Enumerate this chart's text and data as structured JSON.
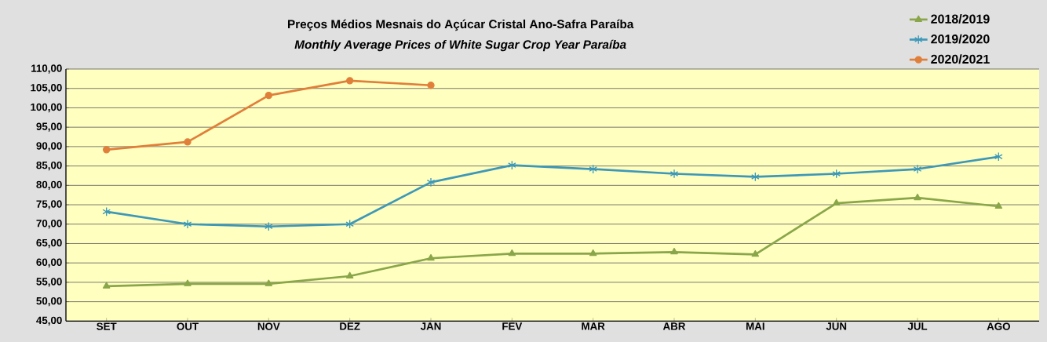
{
  "chart_data": {
    "type": "line",
    "title": "Preços Médios Mesnais do Açúcar Cristal   Ano-Safra   Paraíba",
    "subtitle": "Monthly Average Prices of White Sugar   Crop Year   Paraíba",
    "categories": [
      "SET",
      "OUT",
      "NOV",
      "DEZ",
      "JAN",
      "FEV",
      "MAR",
      "ABR",
      "MAI",
      "JUN",
      "JUL",
      "AGO"
    ],
    "series": [
      {
        "name": "2018/2019",
        "color": "#8aa64a",
        "marker": "triangle",
        "values": [
          54.0,
          54.6,
          54.6,
          56.6,
          61.2,
          62.4,
          62.4,
          62.8,
          62.2,
          75.4,
          76.8,
          74.6
        ]
      },
      {
        "name": "2019/2020",
        "color": "#3d98b8",
        "marker": "cross",
        "values": [
          73.2,
          70.0,
          69.4,
          70.0,
          80.8,
          85.2,
          84.2,
          83.0,
          82.2,
          83.0,
          84.2,
          87.4
        ]
      },
      {
        "name": "2020/2021",
        "color": "#e07f3a",
        "marker": "circle",
        "values": [
          89.2,
          91.2,
          103.2,
          107.0,
          105.8,
          null,
          null,
          null,
          null,
          null,
          null,
          null
        ]
      }
    ],
    "ylim": [
      45,
      110
    ],
    "yticks": [
      {
        "value": 45,
        "label": "45,00"
      },
      {
        "value": 50,
        "label": "50,00"
      },
      {
        "value": 55,
        "label": "55,00"
      },
      {
        "value": 60,
        "label": "60,00"
      },
      {
        "value": 65,
        "label": "65,00"
      },
      {
        "value": 70,
        "label": "70,00"
      },
      {
        "value": 75,
        "label": "75,00"
      },
      {
        "value": 80,
        "label": "80,00"
      },
      {
        "value": 85,
        "label": "85,00"
      },
      {
        "value": 90,
        "label": "90,00"
      },
      {
        "value": 95,
        "label": "95,00"
      },
      {
        "value": 100,
        "label": "100,00"
      },
      {
        "value": 105,
        "label": "105,00"
      },
      {
        "value": 110,
        "label": "110,00"
      }
    ],
    "grid": "y",
    "legend": "top right",
    "line_style": "solid"
  }
}
